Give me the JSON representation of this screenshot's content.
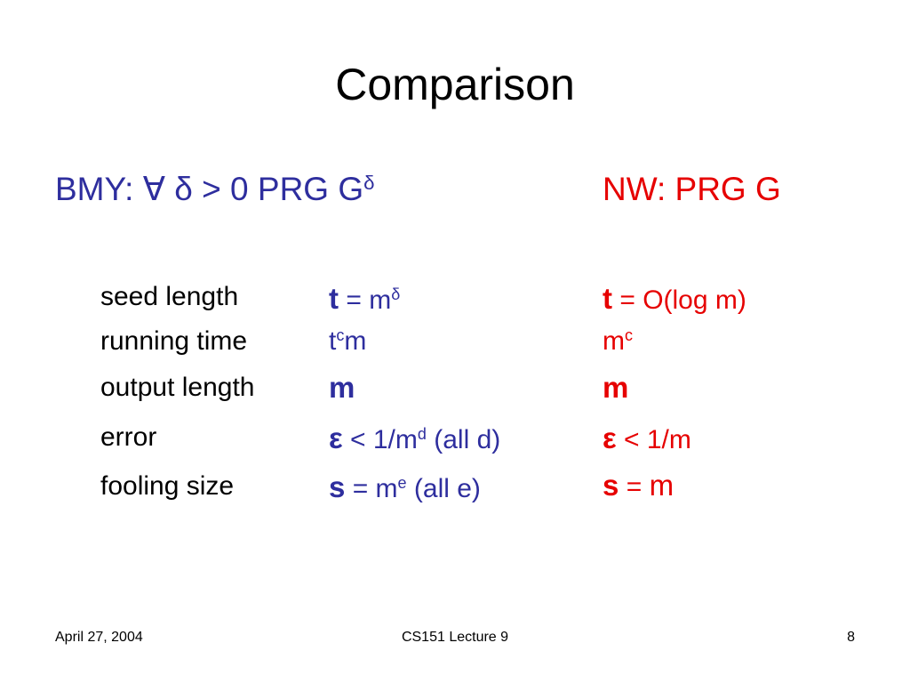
{
  "title": "Comparison",
  "columns": {
    "bmy": {
      "label": "BMY: ∀ δ > 0 PRG G",
      "sup": "δ"
    },
    "nw": "NW: PRG G"
  },
  "rows": [
    {
      "label": "seed length",
      "bmy": [
        "t",
        " = m",
        "δ"
      ],
      "nw": [
        "t",
        " = O(log m)"
      ]
    },
    {
      "label": "running time",
      "bmy": [
        "t",
        "c",
        "m"
      ],
      "nw": [
        "m",
        "c"
      ]
    },
    {
      "label": "output length",
      "bmy": [
        "m"
      ],
      "nw": [
        "m"
      ]
    },
    {
      "label": "error",
      "bmy": [
        "ε",
        " < 1/m",
        "d",
        " (all d)"
      ],
      "nw": [
        "ε",
        " < 1/m"
      ]
    },
    {
      "label": "fooling size",
      "bmy": [
        "s",
        " = m",
        "e",
        " (all e)"
      ],
      "nw": [
        "s",
        " = ",
        "m"
      ]
    }
  ],
  "footer": {
    "date": "April 27, 2004",
    "course": "CS151 Lecture 9",
    "page": "8"
  }
}
